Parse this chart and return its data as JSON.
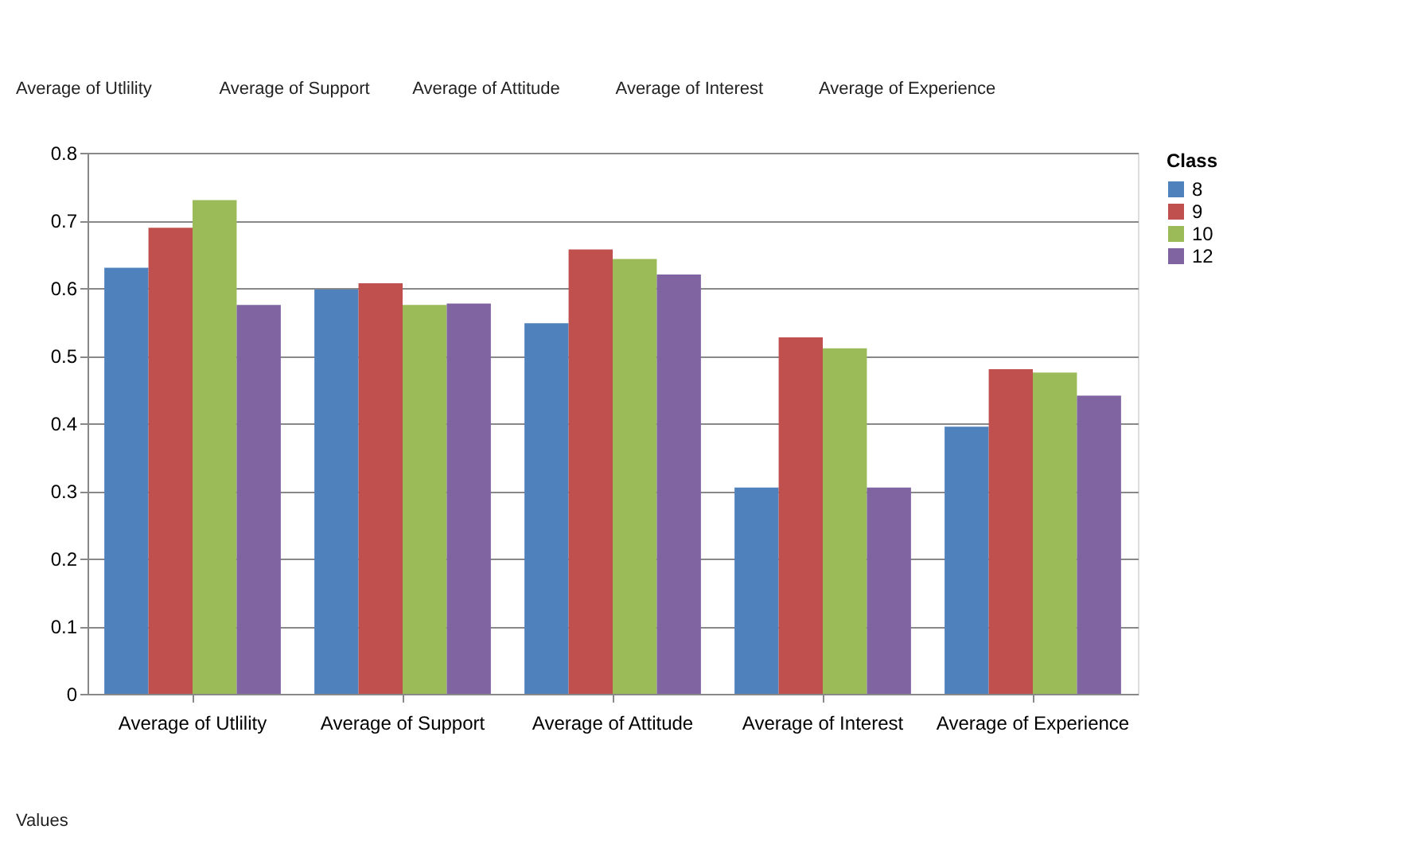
{
  "chart_data": {
    "type": "bar",
    "categories": [
      "Average of Utlility",
      "Average of Support",
      "Average of Attitude",
      "Average of Interest",
      "Average of Experience"
    ],
    "series": [
      {
        "name": "8",
        "color": "#4f81bd",
        "values": [
          0.63,
          0.598,
          0.548,
          0.305,
          0.395
        ]
      },
      {
        "name": "9",
        "color": "#c0504d",
        "values": [
          0.689,
          0.607,
          0.657,
          0.527,
          0.48
        ]
      },
      {
        "name": "10",
        "color": "#9bbb59",
        "values": [
          0.73,
          0.575,
          0.643,
          0.511,
          0.475
        ]
      },
      {
        "name": "12",
        "color": "#8064a2",
        "values": [
          0.575,
          0.577,
          0.62,
          0.305,
          0.441
        ]
      }
    ],
    "ylim": [
      0,
      0.8
    ],
    "yticks": [
      0,
      0.1,
      0.2,
      0.3,
      0.4,
      0.5,
      0.6,
      0.7,
      0.8
    ],
    "grid": "y",
    "legend": "right",
    "legend_title": "Class",
    "annotations": [
      "Average of Utlility",
      "Average of Support",
      "Average of Attitude",
      "Average of Interest",
      "Average of Experience",
      "Values"
    ]
  }
}
